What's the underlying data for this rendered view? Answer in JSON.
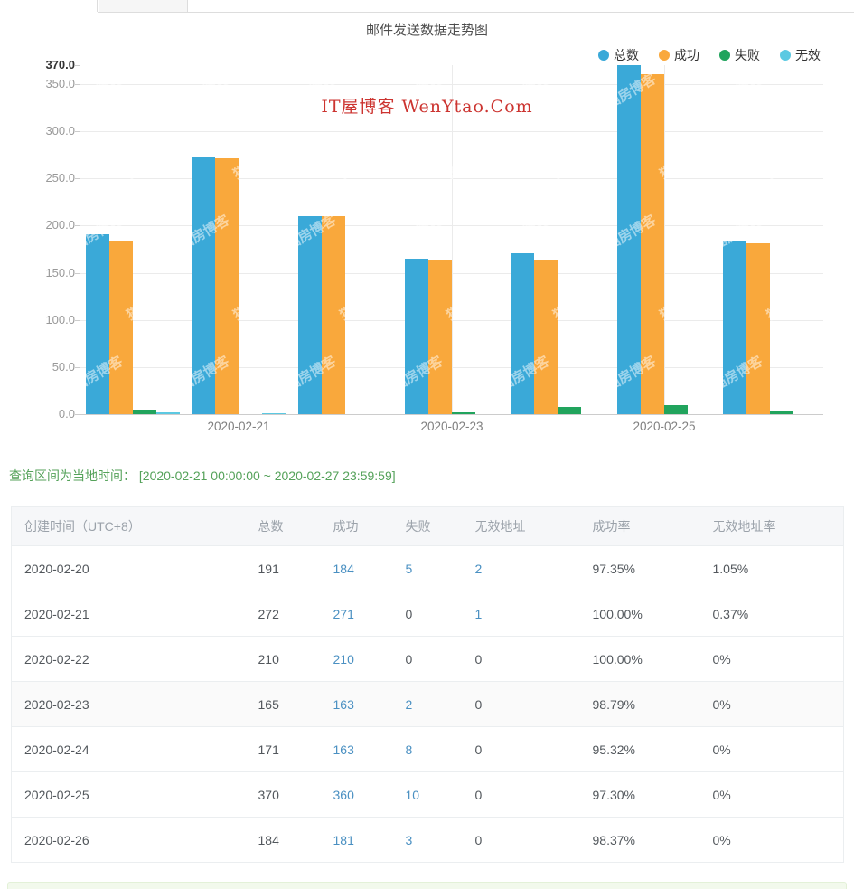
{
  "chart_data": {
    "type": "bar",
    "title": "邮件发送数据走势图",
    "categories": [
      "2020-02-20",
      "2020-02-21",
      "2020-02-22",
      "2020-02-23",
      "2020-02-24",
      "2020-02-25",
      "2020-02-26"
    ],
    "x_tick_labels": [
      "2020-02-21",
      "2020-02-23",
      "2020-02-25"
    ],
    "x_tick_indices": [
      1,
      3,
      5
    ],
    "series": [
      {
        "name": "总数",
        "color": "#3AA9D8",
        "values": [
          191,
          272,
          210,
          165,
          171,
          370,
          184
        ]
      },
      {
        "name": "成功",
        "color": "#F9A83C",
        "values": [
          184,
          271,
          210,
          163,
          163,
          360,
          181
        ]
      },
      {
        "name": "失败",
        "color": "#21A45D",
        "values": [
          5,
          0,
          0,
          2,
          8,
          10,
          3
        ]
      },
      {
        "name": "无效",
        "color": "#5CC9E2",
        "values": [
          2,
          1,
          0,
          0,
          0,
          0,
          0
        ]
      }
    ],
    "ylim": [
      0,
      370
    ],
    "yticks": [
      0,
      50,
      100,
      150,
      200,
      250,
      300,
      350,
      370
    ],
    "grid": true,
    "legend_position": "top-right"
  },
  "watermarks": {
    "red": "IT屋博客 WenYtao.Com",
    "tile": "猫房博客"
  },
  "query_note": {
    "label": "查询区间为当地时间：",
    "range": "[2020-02-21 00:00:00 ~ 2020-02-27 23:59:59]"
  },
  "table": {
    "headers": [
      "创建时间（UTC+8）",
      "总数",
      "成功",
      "失败",
      "无效地址",
      "成功率",
      "无效地址率"
    ],
    "rows": [
      [
        "2020-02-20",
        "191",
        "184",
        "5",
        "2",
        "97.35%",
        "1.05%"
      ],
      [
        "2020-02-21",
        "272",
        "271",
        "0",
        "1",
        "100.00%",
        "0.37%"
      ],
      [
        "2020-02-22",
        "210",
        "210",
        "0",
        "0",
        "100.00%",
        "0%"
      ],
      [
        "2020-02-23",
        "165",
        "163",
        "2",
        "0",
        "98.79%",
        "0%"
      ],
      [
        "2020-02-24",
        "171",
        "163",
        "8",
        "0",
        "95.32%",
        "0%"
      ],
      [
        "2020-02-25",
        "370",
        "360",
        "10",
        "0",
        "97.30%",
        "0%"
      ],
      [
        "2020-02-26",
        "184",
        "181",
        "3",
        "0",
        "98.37%",
        "0%"
      ]
    ],
    "highlighted_row_index": 3
  },
  "colors": {
    "total": "#3AA9D8",
    "success": "#F9A83C",
    "failed": "#21A45D",
    "invalid": "#5CC9E2",
    "link": "#4A90C2",
    "query_green": "#55A25A",
    "watermark_red": "#CC3430"
  }
}
